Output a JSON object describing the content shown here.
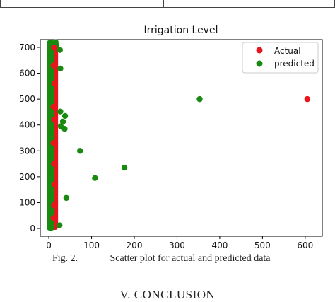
{
  "caption": {
    "figure_number": "Fig. 2.",
    "text": "Scatter plot for actual and predicted data"
  },
  "section_heading": "V. CONCLUSION",
  "chart_data": {
    "type": "scatter",
    "title": "Irrigation Level",
    "xlabel": "",
    "ylabel": "",
    "xlim": [
      -20,
      640
    ],
    "ylim": [
      -30,
      730
    ],
    "xticks": [
      0,
      100,
      200,
      300,
      400,
      500,
      600
    ],
    "yticks": [
      0,
      100,
      200,
      300,
      400,
      500,
      600,
      700
    ],
    "grid": false,
    "legend_position": "top-right",
    "dense_band": {
      "note": "most points lie in a tight vertical column near x between 0 and 10, spanning y from 0 to 720",
      "x_range": [
        0,
        10
      ],
      "y_range": [
        0,
        720
      ]
    },
    "series": [
      {
        "name": "Actual",
        "color": "#e8161c",
        "points": [
          {
            "x": 605,
            "y": 500
          },
          {
            "x": 12,
            "y": 700
          },
          {
            "x": 11,
            "y": 630
          },
          {
            "x": 13,
            "y": 560
          },
          {
            "x": 11,
            "y": 470
          },
          {
            "x": 12,
            "y": 420
          },
          {
            "x": 11,
            "y": 330
          },
          {
            "x": 12,
            "y": 250
          },
          {
            "x": 13,
            "y": 170
          },
          {
            "x": 12,
            "y": 90
          },
          {
            "x": 11,
            "y": 40
          }
        ]
      },
      {
        "name": "predicted",
        "color": "#188a10",
        "points": [
          {
            "x": 353,
            "y": 500
          },
          {
            "x": 177,
            "y": 235
          },
          {
            "x": 108,
            "y": 195
          },
          {
            "x": 73,
            "y": 300
          },
          {
            "x": 41,
            "y": 118
          },
          {
            "x": 38,
            "y": 435
          },
          {
            "x": 37,
            "y": 385
          },
          {
            "x": 33,
            "y": 413
          },
          {
            "x": 28,
            "y": 395
          },
          {
            "x": 27,
            "y": 452
          },
          {
            "x": 26,
            "y": 690
          },
          {
            "x": 27,
            "y": 618
          },
          {
            "x": 25,
            "y": 12
          },
          {
            "x": 18,
            "y": 708
          },
          {
            "x": 16,
            "y": 720
          }
        ]
      }
    ]
  }
}
